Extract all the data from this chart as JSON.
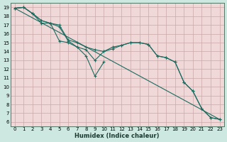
{
  "xlabel": "Humidex (Indice chaleur)",
  "bg_color": "#cce8e0",
  "plot_bg_color": "#f0d8d8",
  "grid_color": "#c8a8a8",
  "line_color": "#1a6b5e",
  "xlim": [
    -0.5,
    23.5
  ],
  "ylim": [
    5.5,
    19.5
  ],
  "xticks": [
    0,
    1,
    2,
    3,
    4,
    5,
    6,
    7,
    8,
    9,
    10,
    11,
    12,
    13,
    14,
    15,
    16,
    17,
    18,
    19,
    20,
    21,
    22,
    23
  ],
  "yticks": [
    6,
    7,
    8,
    9,
    10,
    11,
    12,
    13,
    14,
    15,
    16,
    17,
    18,
    19
  ],
  "series": [
    {
      "x": [
        0,
        1,
        2,
        3,
        4,
        5,
        6,
        7,
        8,
        9,
        10,
        11,
        12,
        13,
        14,
        15,
        16,
        17,
        18,
        19,
        20,
        21,
        22,
        23
      ],
      "y": [
        18.9,
        19.0,
        18.3,
        17.5,
        17.2,
        16.8,
        15.2,
        14.5,
        14.2,
        13.0,
        14.0,
        14.3,
        14.7,
        15.0,
        15.0,
        14.8,
        13.5,
        13.3,
        12.8,
        10.5,
        9.5,
        7.5,
        6.5,
        6.3
      ],
      "marker": true
    },
    {
      "x": [
        0,
        1,
        2,
        3,
        4,
        5,
        6,
        7,
        8,
        9,
        10
      ],
      "y": [
        18.9,
        19.0,
        18.3,
        17.2,
        17.2,
        15.2,
        15.0,
        14.5,
        13.5,
        11.2,
        12.8
      ],
      "marker": true
    },
    {
      "x": [
        0,
        23
      ],
      "y": [
        18.9,
        6.3
      ],
      "marker": false
    },
    {
      "x": [
        0,
        1,
        2,
        3,
        4,
        5,
        6,
        7,
        8,
        9,
        10,
        11,
        12,
        13,
        14,
        15,
        16,
        17,
        18,
        19,
        20,
        21,
        22,
        23
      ],
      "y": [
        18.9,
        19.0,
        18.3,
        17.5,
        17.2,
        17.0,
        15.3,
        15.0,
        14.5,
        14.2,
        14.0,
        14.5,
        14.7,
        15.0,
        15.0,
        14.8,
        13.5,
        13.3,
        12.8,
        10.5,
        9.5,
        7.5,
        6.5,
        6.3
      ],
      "marker": true
    }
  ]
}
